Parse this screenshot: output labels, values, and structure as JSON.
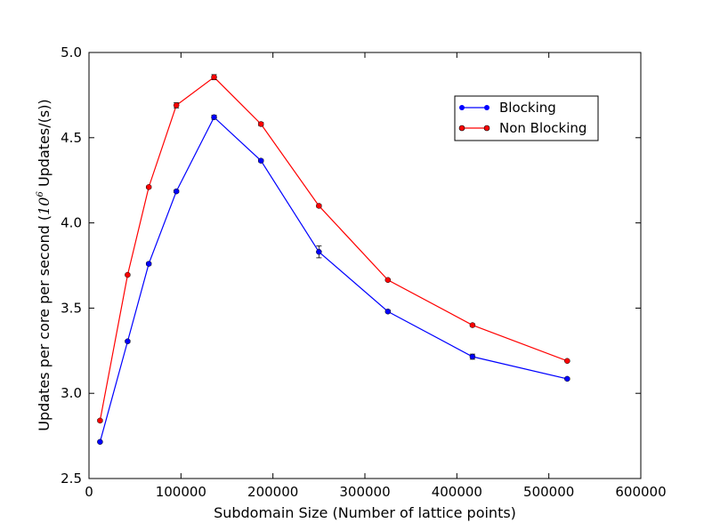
{
  "chart_data": {
    "type": "line",
    "title": "",
    "xlabel": "Subdomain Size (Number of lattice points)",
    "ylabel_main": "Updates per core per second (",
    "ylabel_base": "10",
    "ylabel_exp": "6",
    "ylabel_tail": "  Updates/(s))",
    "xlim": [
      0,
      600000
    ],
    "ylim": [
      2.5,
      5.0
    ],
    "xticks": [
      0,
      100000,
      200000,
      300000,
      400000,
      500000,
      600000
    ],
    "xtick_labels": [
      "0",
      "100000",
      "200000",
      "300000",
      "400000",
      "500000",
      "600000"
    ],
    "yticks": [
      2.5,
      3.0,
      3.5,
      4.0,
      4.5,
      5.0
    ],
    "ytick_labels": [
      "2.5",
      "3.0",
      "3.5",
      "4.0",
      "4.5",
      "5.0"
    ],
    "legend_position": "top-right",
    "grid": false,
    "series": [
      {
        "name": "Blocking",
        "color": "#0000ff",
        "x": [
          12000,
          42000,
          65000,
          95000,
          136000,
          187000,
          250000,
          325000,
          417000,
          520000
        ],
        "y": [
          2.715,
          3.305,
          3.76,
          4.185,
          4.62,
          4.365,
          3.83,
          3.48,
          3.215,
          3.085
        ],
        "err": [
          0.005,
          0.007,
          0.008,
          0.008,
          0.012,
          0.008,
          0.035,
          0.008,
          0.015,
          0.006
        ]
      },
      {
        "name": "Non Blocking",
        "color": "#ff0000",
        "x": [
          12000,
          42000,
          65000,
          95000,
          136000,
          187000,
          250000,
          325000,
          417000,
          520000
        ],
        "y": [
          2.84,
          3.695,
          4.21,
          4.69,
          4.855,
          4.58,
          4.1,
          3.665,
          3.4,
          3.19
        ],
        "err": [
          0.007,
          0.006,
          0.007,
          0.015,
          0.015,
          0.01,
          0.008,
          0.005,
          0.008,
          0.005
        ]
      }
    ]
  }
}
